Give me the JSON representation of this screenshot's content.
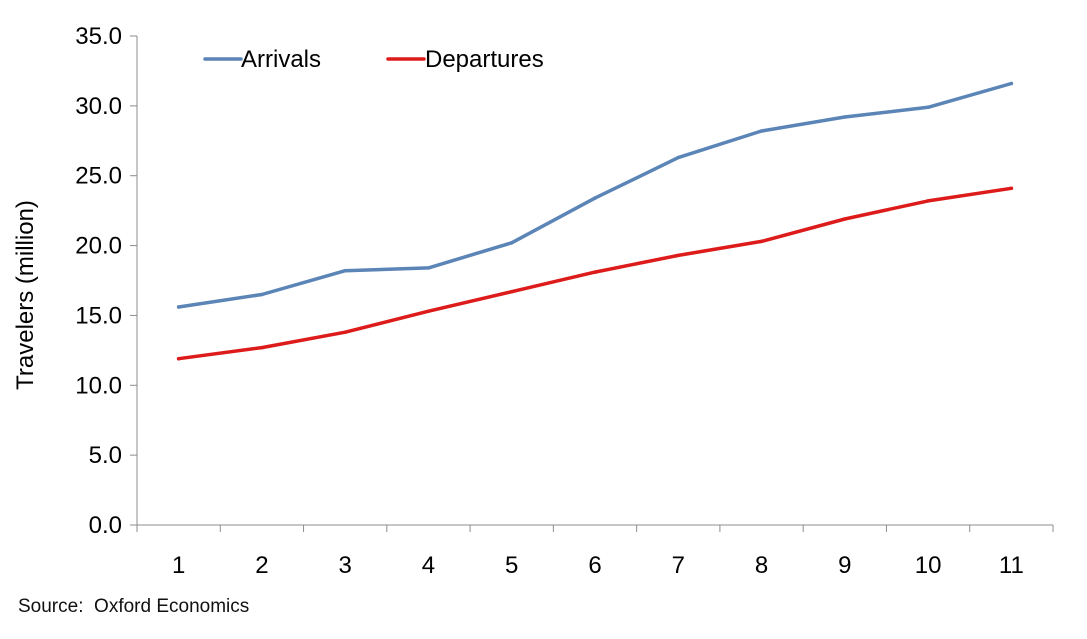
{
  "chart_data": {
    "type": "line",
    "title": "",
    "xlabel": "",
    "ylabel": "Travelers (million)",
    "x": [
      1,
      2,
      3,
      4,
      5,
      6,
      7,
      8,
      9,
      10,
      11
    ],
    "x_tick_labels": [
      "1",
      "2",
      "3",
      "4",
      "5",
      "6",
      "7",
      "8",
      "9",
      "10",
      "11"
    ],
    "ylim": [
      0,
      35
    ],
    "y_ticks": [
      0,
      5,
      10,
      15,
      20,
      25,
      30,
      35
    ],
    "y_tick_labels": [
      "0.0",
      "5.0",
      "10.0",
      "15.0",
      "20.0",
      "25.0",
      "30.0",
      "35.0"
    ],
    "grid": false,
    "legend_position": "top-left",
    "series": [
      {
        "name": "Arrivals",
        "color": "#5b84b7",
        "values": [
          15.6,
          16.5,
          18.2,
          18.4,
          20.2,
          23.4,
          26.3,
          28.2,
          29.2,
          29.9,
          31.6
        ]
      },
      {
        "name": "Departures",
        "color": "#dd1b1b",
        "values": [
          11.9,
          12.7,
          13.8,
          15.3,
          16.7,
          18.1,
          19.3,
          20.3,
          21.9,
          23.2,
          24.1
        ]
      }
    ]
  },
  "footer": {
    "source": "Source:  Oxford Economics"
  }
}
